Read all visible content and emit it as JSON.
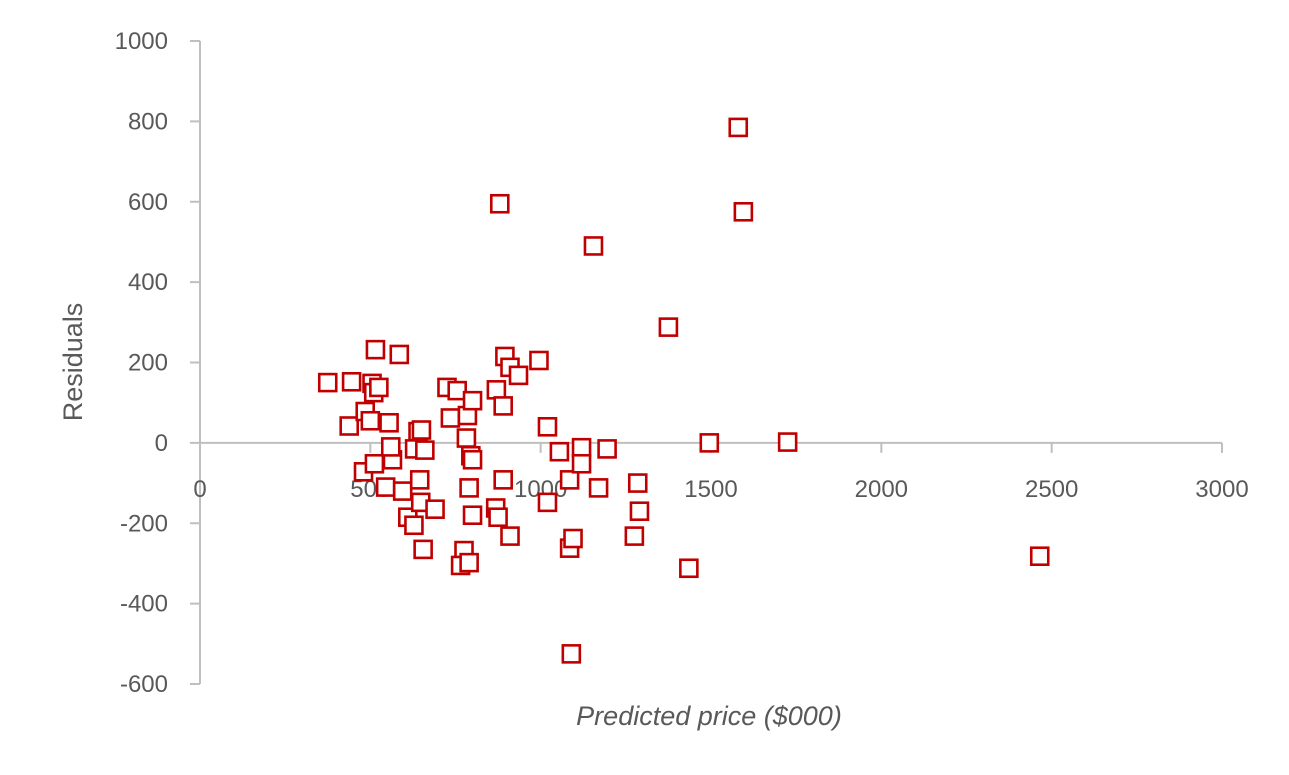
{
  "chart_data": {
    "type": "scatter",
    "title": "",
    "xlabel": "Predicted price ($000)",
    "ylabel": "Residuals",
    "xlim": [
      0,
      3000
    ],
    "ylim": [
      -600,
      1000
    ],
    "xticks": [
      0,
      500,
      1000,
      1500,
      2000,
      2500,
      3000
    ],
    "yticks": [
      -600,
      -400,
      -200,
      0,
      200,
      400,
      600,
      800,
      1000
    ],
    "grid": false,
    "legend": "none",
    "marker": "hollow-square",
    "marker_color": "#C00000",
    "axis_color": "#BFBFBF",
    "label_color": "#595959",
    "series": [
      {
        "points": [
          [
            375,
            150
          ],
          [
            445,
            152
          ],
          [
            505,
            148
          ],
          [
            510,
            125
          ],
          [
            525,
            138
          ],
          [
            515,
            232
          ],
          [
            585,
            220
          ],
          [
            438,
            42
          ],
          [
            485,
            78
          ],
          [
            500,
            55
          ],
          [
            555,
            50
          ],
          [
            480,
            -72
          ],
          [
            512,
            -52
          ],
          [
            565,
            -42
          ],
          [
            560,
            -10
          ],
          [
            545,
            -110
          ],
          [
            595,
            -120
          ],
          [
            610,
            -185
          ],
          [
            630,
            -15
          ],
          [
            640,
            28
          ],
          [
            650,
            32
          ],
          [
            660,
            -18
          ],
          [
            648,
            -148
          ],
          [
            645,
            -92
          ],
          [
            628,
            -205
          ],
          [
            655,
            -265
          ],
          [
            690,
            -165
          ],
          [
            725,
            138
          ],
          [
            735,
            62
          ],
          [
            755,
            130
          ],
          [
            785,
            68
          ],
          [
            782,
            12
          ],
          [
            800,
            105
          ],
          [
            795,
            -32
          ],
          [
            800,
            -42
          ],
          [
            790,
            -112
          ],
          [
            800,
            -180
          ],
          [
            775,
            -268
          ],
          [
            765,
            -305
          ],
          [
            790,
            -298
          ],
          [
            870,
            132
          ],
          [
            895,
            215
          ],
          [
            910,
            188
          ],
          [
            935,
            168
          ],
          [
            995,
            205
          ],
          [
            890,
            92
          ],
          [
            880,
            595
          ],
          [
            1020,
            40
          ],
          [
            890,
            -92
          ],
          [
            868,
            -162
          ],
          [
            875,
            -185
          ],
          [
            910,
            -232
          ],
          [
            1020,
            -148
          ],
          [
            1055,
            -22
          ],
          [
            1085,
            -92
          ],
          [
            1120,
            -12
          ],
          [
            1120,
            -52
          ],
          [
            1170,
            -112
          ],
          [
            1195,
            -15
          ],
          [
            1085,
            -262
          ],
          [
            1095,
            -238
          ],
          [
            1090,
            -525
          ],
          [
            1155,
            490
          ],
          [
            1375,
            288
          ],
          [
            1285,
            -100
          ],
          [
            1290,
            -170
          ],
          [
            1275,
            -232
          ],
          [
            1435,
            -312
          ],
          [
            1495,
            0
          ],
          [
            1580,
            785
          ],
          [
            1595,
            575
          ],
          [
            1725,
            2
          ],
          [
            2465,
            -282
          ]
        ]
      }
    ]
  }
}
